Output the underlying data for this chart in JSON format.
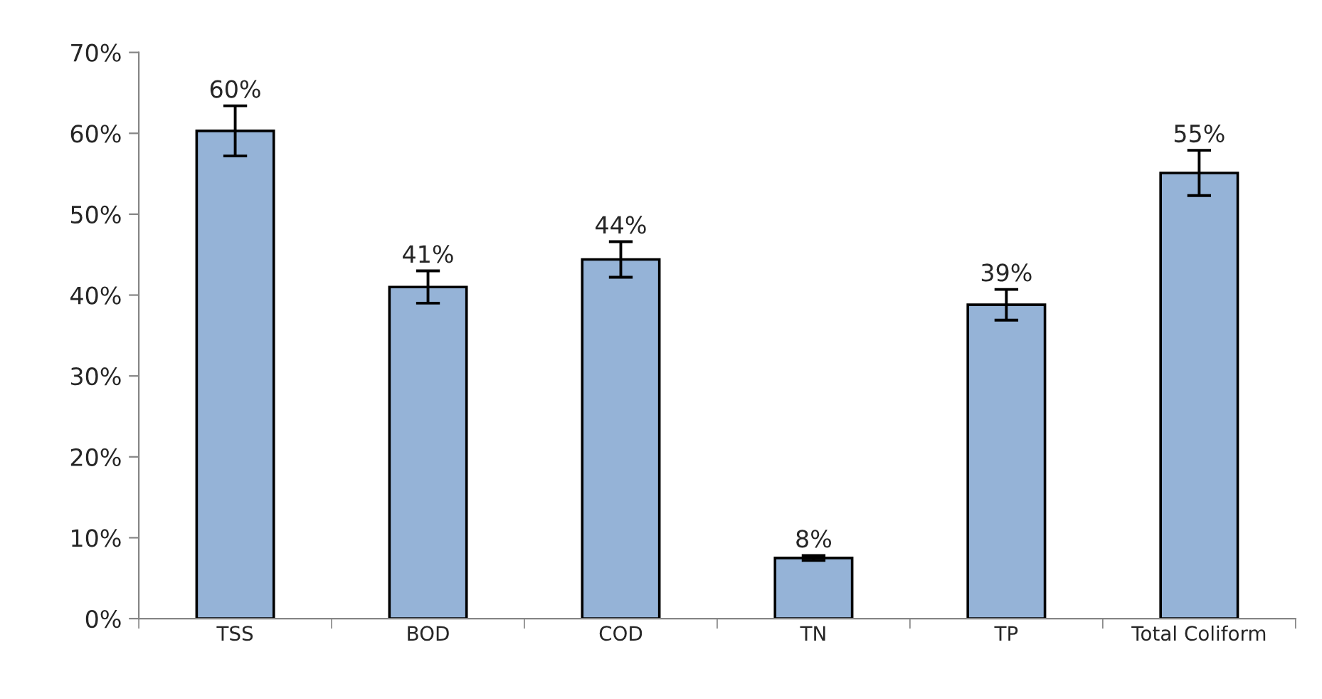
{
  "chart_data": {
    "type": "bar",
    "categories": [
      "TSS",
      "BOD",
      "COD",
      "TN",
      "TP",
      "Total Coliform"
    ],
    "values": [
      60.3,
      41.0,
      44.4,
      7.5,
      38.8,
      55.1
    ],
    "errors": [
      3.1,
      2.0,
      2.2,
      0.3,
      1.9,
      2.8
    ],
    "value_labels": [
      "60%",
      "41%",
      "44%",
      "8%",
      "39%",
      "55%"
    ],
    "color": "#95b3d7",
    "ylim": [
      0,
      70
    ],
    "yticks": [
      {
        "value": 0,
        "label": "0%"
      },
      {
        "value": 10,
        "label": "10%"
      },
      {
        "value": 20,
        "label": "20%"
      },
      {
        "value": 30,
        "label": "30%"
      },
      {
        "value": 40,
        "label": "40%"
      },
      {
        "value": 50,
        "label": "50%"
      },
      {
        "value": 60,
        "label": "60%"
      },
      {
        "value": 70,
        "label": "70%"
      }
    ],
    "grid": false,
    "legend": false
  }
}
